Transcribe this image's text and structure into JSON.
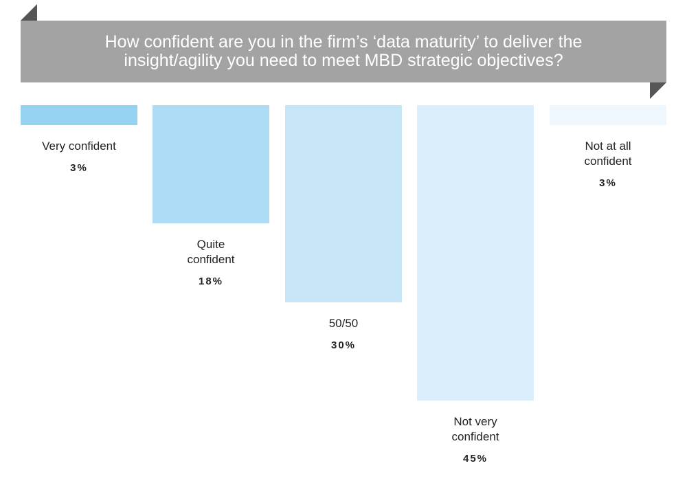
{
  "chart_data": {
    "type": "bar",
    "title": "How confident are you in the firm’s ‘data maturity’ to deliver the\ninsight/agility you need to meet MBD strategic objectives?",
    "categories": [
      "Very confident",
      "Quite\nconfident",
      "50/50",
      "Not very\nconfident",
      "Not at all\nconfident"
    ],
    "values": [
      3,
      18,
      30,
      45,
      3
    ],
    "value_labels": [
      "3%",
      "18%",
      "30%",
      "45%",
      "3%"
    ],
    "unit": "%",
    "orientation": "downward",
    "colors": [
      "#96d3f2",
      "#afdcf5",
      "#c7e6f8",
      "#daeffb",
      "#eef7fd"
    ]
  }
}
